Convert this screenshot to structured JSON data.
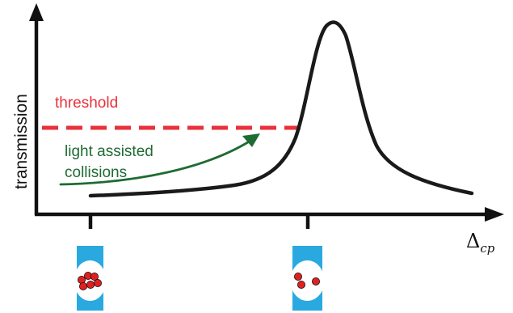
{
  "diagram": {
    "y_axis_label": "transmission",
    "x_axis_label_symbol": "Δ",
    "x_axis_label_subscript": "cp",
    "threshold_label": "threshold",
    "arrow_label_line1": "light assisted",
    "arrow_label_line2": "collisions"
  },
  "colors": {
    "axis": "#111111",
    "curve": "#1a1a1a",
    "threshold": "#e8313b",
    "arrow": "#1e6b33",
    "trap": "#29a9e0",
    "atom": "#e02020"
  },
  "traps": [
    {
      "name": "trap-many-atoms",
      "atom_count": 6
    },
    {
      "name": "trap-few-atoms",
      "atom_count": 3
    }
  ]
}
